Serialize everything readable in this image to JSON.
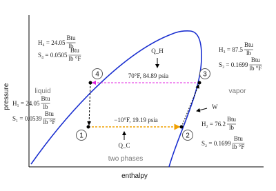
{
  "axes": {
    "y_label": "pressure",
    "x_label": "enthalpy"
  },
  "regions": {
    "liquid": "liquid",
    "vapor": "vapor",
    "two_phase": "two phases"
  },
  "units": {
    "h_num": "Btu",
    "h_den": "lb",
    "s_num": "Btu",
    "s_den": "lb °F"
  },
  "states": [
    {
      "number": "1",
      "h_text": "H₁ = 24.05",
      "s_text": "S₁ = 0.0539"
    },
    {
      "number": "2",
      "h_text": "H₂ = 76.2",
      "s_text": "S₂ = 0.1699"
    },
    {
      "number": "3",
      "h_text": "H₃ = 87.5",
      "s_text": "S₃ = 0.1699"
    },
    {
      "number": "4",
      "h_text": "H₄ = 24.05",
      "s_text": "S₄ = 0.0505"
    }
  ],
  "lines": {
    "high": "70°F, 84.89 psia",
    "low": "−10°F, 19.19 psia"
  },
  "energy": {
    "q_hot": "Q_H",
    "q_cold": "Q_C",
    "work": "W"
  }
}
